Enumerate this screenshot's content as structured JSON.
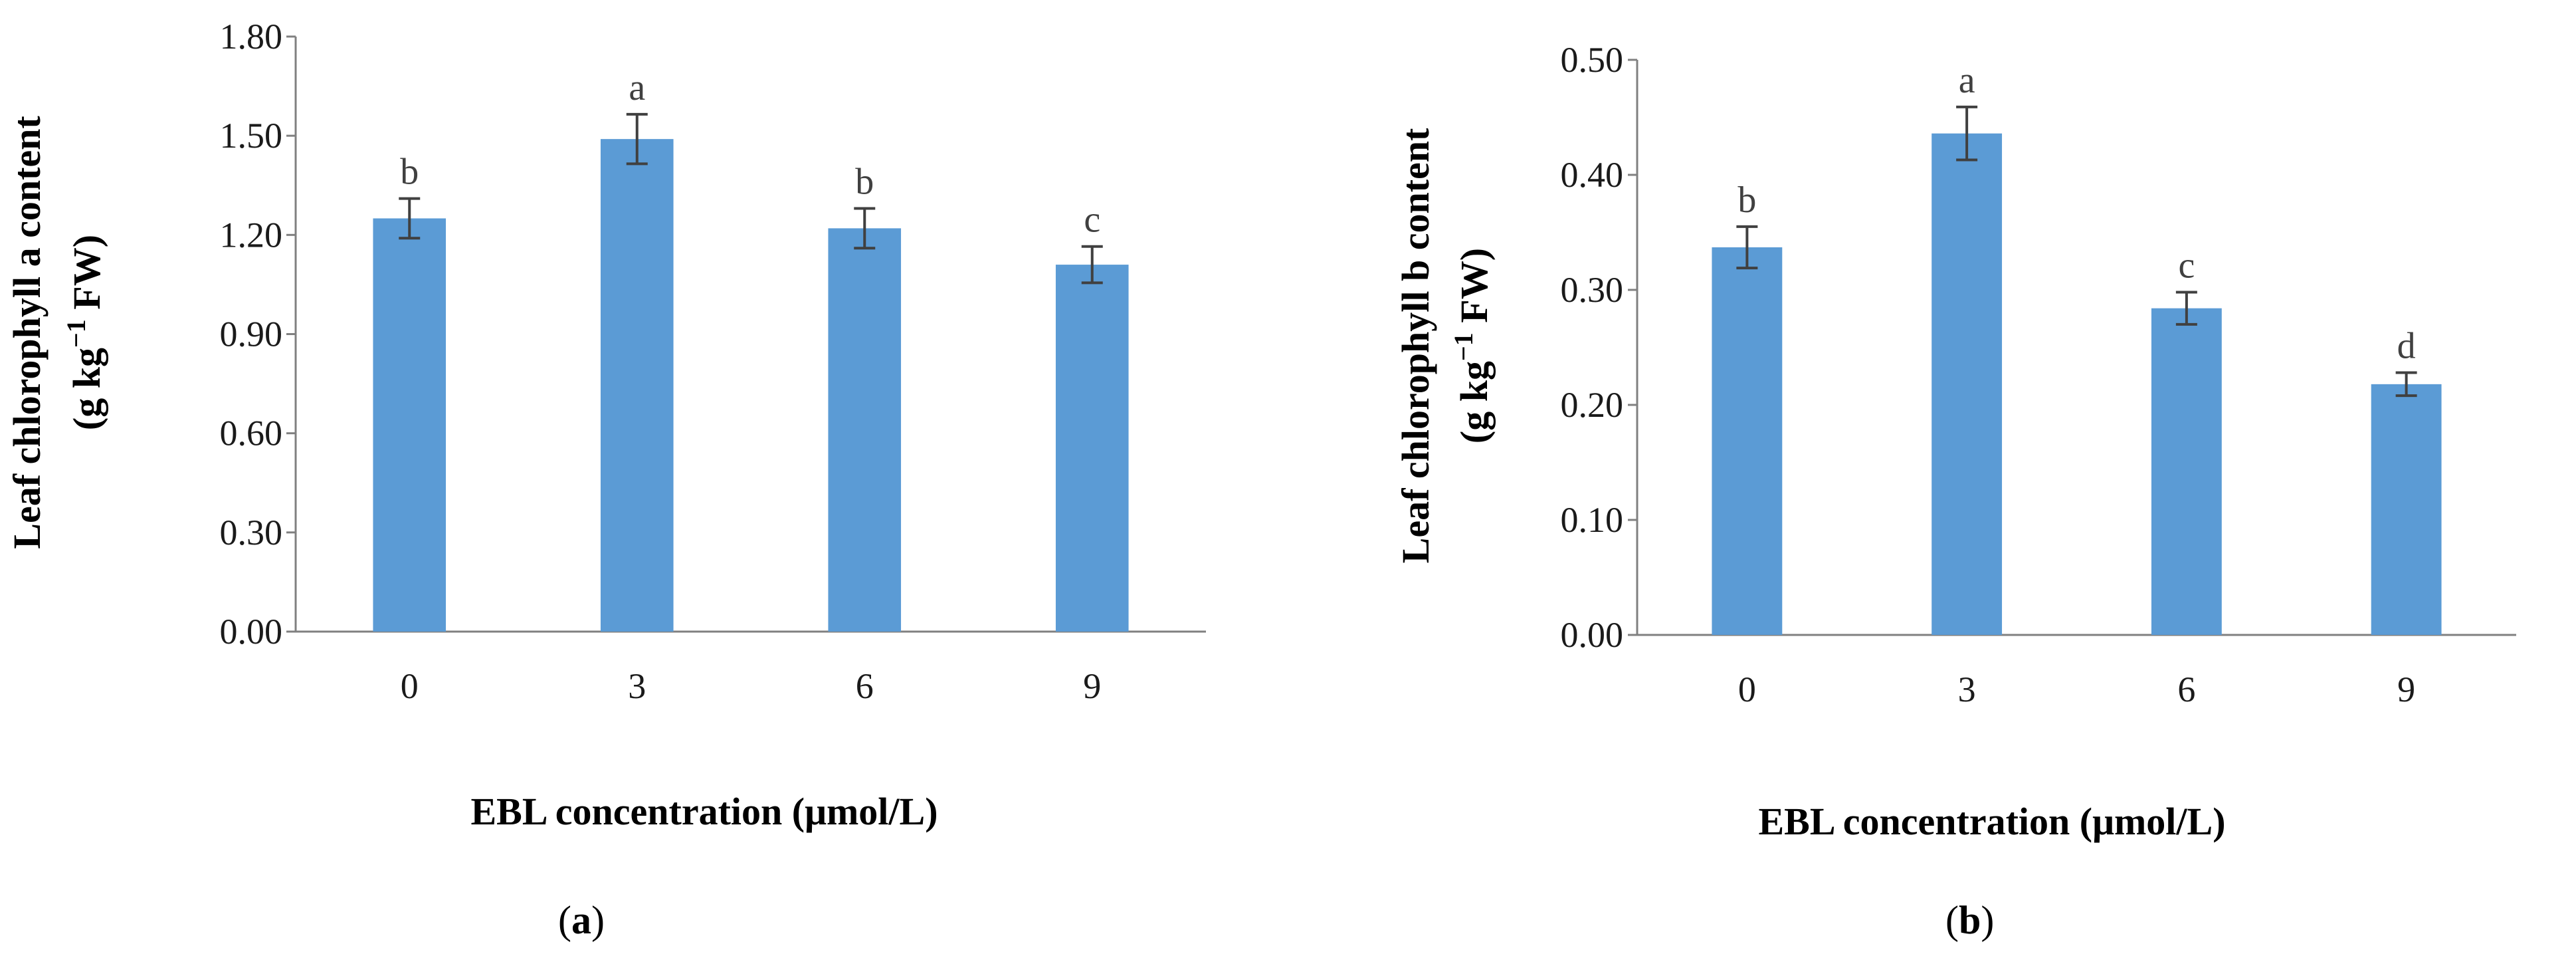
{
  "bar_color": "#5B9BD5",
  "error_color": "#404040",
  "chart_data": [
    {
      "type": "bar",
      "panel_label": "a",
      "ylabel_line1": "Leaf chlorophyll a content",
      "ylabel_line2": "(g kg",
      "ylabel_sup": "−1",
      "ylabel_tail": " FW)",
      "xlabel": "EBL concentration (μmol/L)",
      "categories": [
        "0",
        "3",
        "6",
        "9"
      ],
      "values": [
        1.25,
        1.49,
        1.22,
        1.11
      ],
      "errors": [
        0.06,
        0.075,
        0.06,
        0.055
      ],
      "significance": [
        "b",
        "a",
        "b",
        "c"
      ],
      "ylim": [
        0,
        1.8
      ],
      "yticks": [
        "0.00",
        "0.30",
        "0.60",
        "0.90",
        "1.20",
        "1.50",
        "1.80"
      ]
    },
    {
      "type": "bar",
      "panel_label": "b",
      "ylabel_line1": "Leaf chlorophyll b content",
      "ylabel_line2": "(g kg",
      "ylabel_sup": "−1",
      "ylabel_tail": " FW)",
      "xlabel": "EBL concentration (μmol/L)",
      "categories": [
        "0",
        "3",
        "6",
        "9"
      ],
      "values": [
        0.337,
        0.436,
        0.284,
        0.218
      ],
      "errors": [
        0.018,
        0.023,
        0.014,
        0.01
      ],
      "significance": [
        "b",
        "a",
        "c",
        "d"
      ],
      "ylim": [
        0,
        0.5
      ],
      "yticks": [
        "0.00",
        "0.10",
        "0.20",
        "0.30",
        "0.40",
        "0.50"
      ]
    }
  ]
}
